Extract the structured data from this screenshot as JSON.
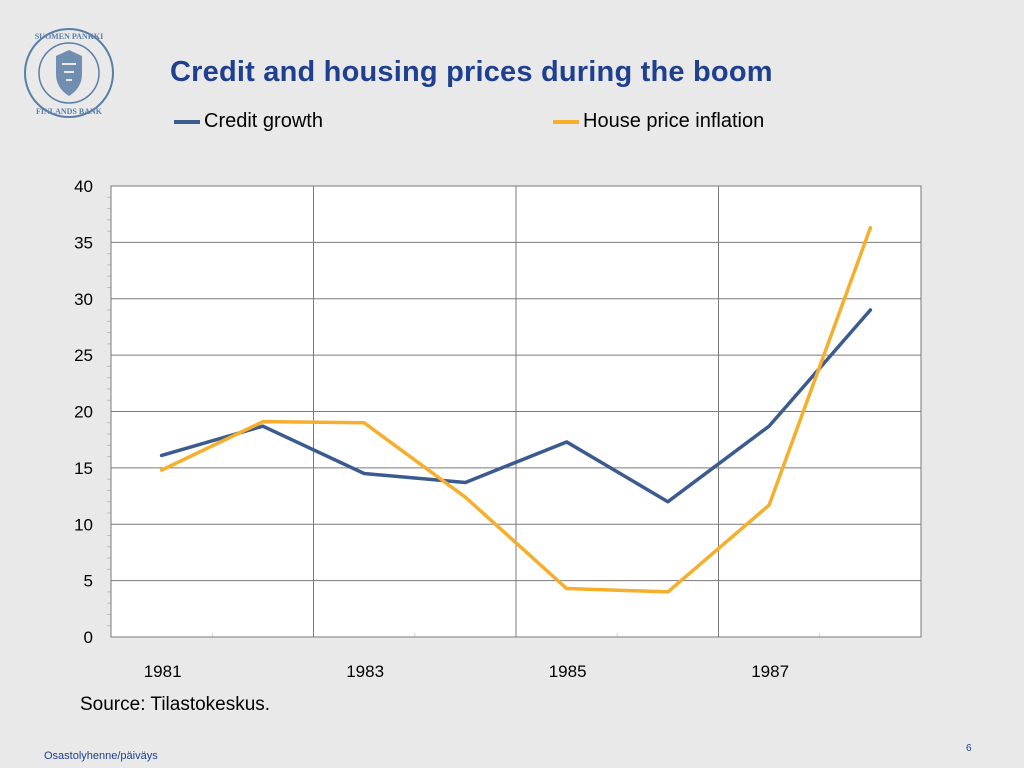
{
  "logo": {
    "text_top": "SUOMEN PANKKI",
    "text_bottom": "FINLANDS BANK",
    "color": "#5a7fa6"
  },
  "title": "Credit and housing prices during the boom",
  "chart_data": {
    "type": "line",
    "title": "Credit and housing prices during the boom",
    "xlabel": "",
    "ylabel": "",
    "x": [
      1981,
      1982,
      1983,
      1984,
      1985,
      1986,
      1987,
      1988
    ],
    "x_tick_labels": [
      "1981",
      "1983",
      "1985",
      "1987"
    ],
    "y_ticks": [
      "0",
      "5",
      "10",
      "15",
      "20",
      "25",
      "30",
      "35",
      "40"
    ],
    "ylim": [
      0,
      40
    ],
    "grid": true,
    "legend_position": "top",
    "series": [
      {
        "name": "Credit growth",
        "color": "#3b5b8f",
        "values": [
          16.1,
          18.7,
          14.5,
          13.7,
          17.3,
          12.0,
          18.7,
          29.0
        ]
      },
      {
        "name": "House price inflation",
        "color": "#f6ae2d",
        "values": [
          14.8,
          19.1,
          19.0,
          12.4,
          4.3,
          4.0,
          11.7,
          36.3
        ]
      }
    ]
  },
  "source": "Source: Tilastokeskus.",
  "footer": {
    "left": "Osastolyhenne/päiväys",
    "page": "6"
  }
}
